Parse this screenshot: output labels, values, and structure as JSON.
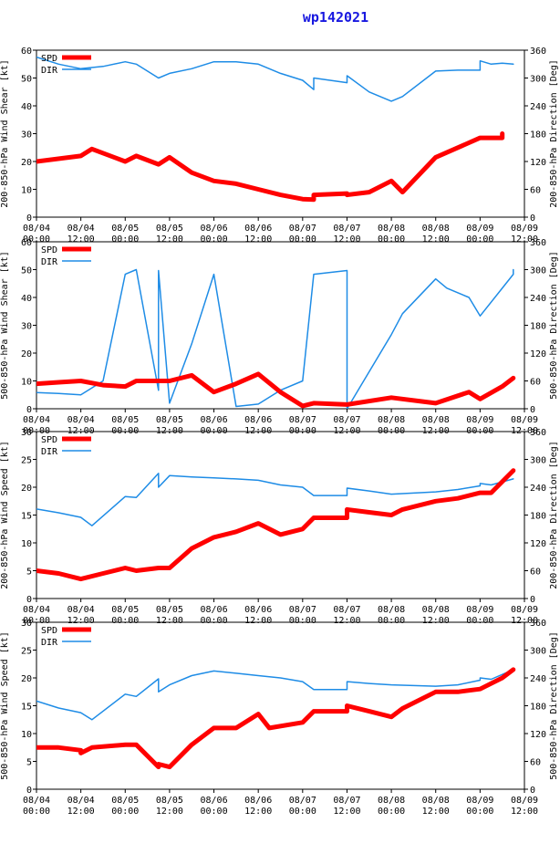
{
  "title": "wp142021",
  "colors": {
    "spd": "#ff0000",
    "dir": "#1e8ce6",
    "axis": "#000000",
    "title": "#1818e0"
  },
  "legend": {
    "spd_label": "SPD",
    "dir_label": "DIR"
  },
  "x_tick_labels": [
    [
      "08/04",
      "00:00"
    ],
    [
      "08/04",
      "12:00"
    ],
    [
      "08/05",
      "00:00"
    ],
    [
      "08/05",
      "12:00"
    ],
    [
      "08/06",
      "00:00"
    ],
    [
      "08/06",
      "12:00"
    ],
    [
      "08/07",
      "00:00"
    ],
    [
      "08/07",
      "12:00"
    ],
    [
      "08/08",
      "00:00"
    ],
    [
      "08/08",
      "12:00"
    ],
    [
      "08/09",
      "00:00"
    ],
    [
      "08/09",
      "12:00"
    ]
  ],
  "chart_data": [
    {
      "type": "line",
      "ylabel_left": "200-850-hPa Wind Shear [kt]",
      "ylabel_right": "200-850-hPa Direction [Deg]",
      "ylim_left": [
        0,
        60
      ],
      "yticks_left": [
        0,
        10,
        20,
        30,
        40,
        50,
        60
      ],
      "ylim_right": [
        0,
        360
      ],
      "yticks_right": [
        0,
        60,
        120,
        180,
        240,
        300,
        360
      ],
      "xlim_hours": [
        0,
        132
      ],
      "series": [
        {
          "name": "SPD",
          "axis": "left",
          "x": [
            0,
            12,
            15,
            24,
            27,
            33,
            36,
            42,
            48,
            54,
            60,
            66,
            72,
            75,
            75,
            84,
            84,
            90,
            96,
            99,
            108,
            114,
            120,
            126,
            126
          ],
          "y": [
            20,
            22,
            24.5,
            20,
            22,
            19,
            21.5,
            16,
            13,
            12,
            10,
            8,
            6.5,
            6.3,
            8,
            8.5,
            8,
            9,
            13,
            9,
            21.5,
            25,
            28.5,
            28.5,
            30
          ]
        },
        {
          "name": "DIR",
          "axis": "right",
          "x": [
            0,
            6,
            12,
            18,
            24,
            27,
            33,
            36,
            42,
            48,
            54,
            60,
            66,
            72,
            75,
            75,
            84,
            84,
            90,
            96,
            99,
            108,
            114,
            120,
            120,
            123,
            126,
            129
          ],
          "y": [
            345,
            330,
            320,
            325,
            335,
            330,
            300,
            310,
            320,
            335,
            335,
            330,
            310,
            295,
            275,
            300,
            290,
            305,
            270,
            250,
            260,
            315,
            317,
            317,
            337,
            330,
            332,
            330
          ]
        }
      ]
    },
    {
      "type": "line",
      "ylabel_left": "500-850-hPa Wind Shear [kt]",
      "ylabel_right": "500-850-hPa Direction [Deg]",
      "ylim_left": [
        0,
        60
      ],
      "yticks_left": [
        0,
        10,
        20,
        30,
        40,
        50,
        60
      ],
      "ylim_right": [
        0,
        360
      ],
      "yticks_right": [
        0,
        60,
        120,
        180,
        240,
        300,
        360
      ],
      "xlim_hours": [
        0,
        132
      ],
      "series": [
        {
          "name": "SPD",
          "axis": "left",
          "x": [
            0,
            6,
            12,
            18,
            24,
            27,
            33,
            36,
            42,
            48,
            54,
            60,
            66,
            72,
            75,
            84,
            96,
            105,
            108,
            117,
            120,
            126,
            129
          ],
          "y": [
            9,
            9.5,
            10,
            8.5,
            8,
            10,
            10,
            10,
            12,
            6,
            9,
            12.5,
            6,
            1,
            2,
            1.5,
            4,
            2.5,
            2,
            6,
            3.5,
            8,
            11
          ]
        },
        {
          "name": "DIR",
          "axis": "right",
          "x": [
            0,
            6,
            12,
            18,
            24,
            27,
            33,
            33,
            36,
            42,
            48,
            54,
            60,
            66,
            72,
            75,
            84,
            84,
            96,
            99,
            108,
            111,
            117,
            120,
            129,
            129
          ],
          "y": [
            35,
            33,
            30,
            60,
            290,
            300,
            40,
            298,
            12,
            140,
            290,
            5,
            10,
            40,
            60,
            290,
            298,
            0,
            160,
            205,
            280,
            260,
            240,
            200,
            290,
            300
          ]
        }
      ]
    },
    {
      "type": "line",
      "ylabel_left": "200-850-hPa Wind Speed [kt]",
      "ylabel_right": "200-850-hPa Direction [Deg]",
      "ylim_left": [
        0,
        30
      ],
      "yticks_left": [
        0,
        5,
        10,
        15,
        20,
        25,
        30
      ],
      "ylim_right": [
        0,
        360
      ],
      "yticks_right": [
        0,
        60,
        120,
        180,
        240,
        300,
        360
      ],
      "xlim_hours": [
        0,
        132
      ],
      "series": [
        {
          "name": "SPD",
          "axis": "left",
          "x": [
            0,
            6,
            12,
            12,
            18,
            24,
            27,
            33,
            36,
            42,
            48,
            54,
            60,
            66,
            72,
            75,
            84,
            84,
            90,
            96,
            99,
            108,
            114,
            120,
            123,
            126,
            129
          ],
          "y": [
            5,
            4.5,
            3.5,
            3.5,
            4.5,
            5.5,
            5,
            5.5,
            5.5,
            9,
            11,
            12,
            13.5,
            11.5,
            12.5,
            14.5,
            14.5,
            16,
            15.5,
            15,
            16,
            17.5,
            18,
            19,
            19,
            21,
            23
          ]
        },
        {
          "name": "DIR",
          "axis": "right",
          "x": [
            0,
            6,
            12,
            15,
            24,
            27,
            33,
            33,
            36,
            42,
            48,
            54,
            60,
            66,
            72,
            75,
            84,
            84,
            90,
            96,
            108,
            114,
            120,
            120,
            123,
            129
          ],
          "y": [
            193,
            185,
            175,
            157,
            220,
            218,
            270,
            240,
            265,
            262,
            260,
            258,
            255,
            245,
            240,
            222,
            222,
            238,
            232,
            225,
            230,
            235,
            243,
            248,
            245,
            258
          ]
        }
      ]
    },
    {
      "type": "line",
      "ylabel_left": "500-850-hPa Wind Speed [kt]",
      "ylabel_right": "500-850-hPa Direction [Deg]",
      "ylim_left": [
        0,
        30
      ],
      "yticks_left": [
        0,
        5,
        10,
        15,
        20,
        25,
        30
      ],
      "ylim_right": [
        0,
        360
      ],
      "yticks_right": [
        0,
        60,
        120,
        180,
        240,
        300,
        360
      ],
      "xlim_hours": [
        0,
        132
      ],
      "series": [
        {
          "name": "SPD",
          "axis": "left",
          "x": [
            0,
            6,
            12,
            12,
            15,
            24,
            27,
            33,
            33,
            36,
            42,
            48,
            54,
            60,
            63,
            72,
            75,
            84,
            84,
            90,
            96,
            99,
            108,
            114,
            120,
            126,
            129
          ],
          "y": [
            7.5,
            7.5,
            7,
            6.5,
            7.5,
            8,
            8,
            4,
            4.5,
            4,
            8,
            11,
            11,
            13.5,
            11,
            12,
            14,
            14,
            15,
            14,
            13,
            14.5,
            17.5,
            17.5,
            18,
            20,
            21.5
          ]
        },
        {
          "name": "DIR",
          "axis": "right",
          "x": [
            0,
            6,
            12,
            15,
            24,
            27,
            33,
            33,
            36,
            42,
            48,
            54,
            60,
            66,
            72,
            75,
            84,
            84,
            90,
            96,
            108,
            114,
            120,
            120,
            123,
            129
          ],
          "y": [
            190,
            175,
            165,
            150,
            205,
            200,
            238,
            210,
            225,
            245,
            255,
            250,
            245,
            240,
            232,
            215,
            215,
            232,
            228,
            225,
            222,
            225,
            235,
            240,
            237,
            258
          ]
        }
      ]
    }
  ]
}
